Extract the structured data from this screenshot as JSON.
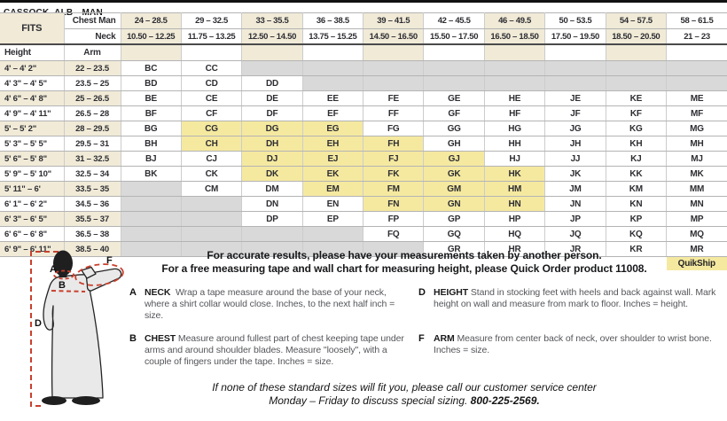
{
  "title": "CASSOCK–ALB—MAN",
  "colors": {
    "cream": "#f0ead7",
    "quickship": "#f5e9a0",
    "na": "#d9d9d9",
    "accent-red": "#c9402e",
    "robe": "#e9e9e9"
  },
  "table": {
    "fits_label": "FITS",
    "chest_label": "Chest Man",
    "neck_label": "Neck",
    "height_label": "Height",
    "arm_label": "Arm",
    "quikship_label": "QuikShip",
    "chest_ranges": [
      "24 – 28.5",
      "29 – 32.5",
      "33 – 35.5",
      "36 – 38.5",
      "39 – 41.5",
      "42 – 45.5",
      "46 – 49.5",
      "50 – 53.5",
      "54 – 57.5",
      "58 – 61.5"
    ],
    "neck_ranges": [
      "10.50 – 12.25",
      "11.75 – 13.25",
      "12.50 – 14.50",
      "13.75 – 15.25",
      "14.50 – 16.50",
      "15.50 – 17.50",
      "16.50 – 18.50",
      "17.50 – 19.50",
      "18.50 – 20.50",
      "21 – 23"
    ],
    "quickship_codes": [
      "CG",
      "DG",
      "EG",
      "CH",
      "DH",
      "EH",
      "FH",
      "DJ",
      "EJ",
      "FJ",
      "GJ",
      "DK",
      "EK",
      "FK",
      "GK",
      "HK",
      "EM",
      "FM",
      "GM",
      "HM",
      "FN",
      "GN",
      "HN"
    ],
    "rows": [
      {
        "height": "4' – 4' 2\"",
        "arm": "22 – 23.5",
        "codes": [
          "BC",
          "CC",
          null,
          null,
          null,
          null,
          null,
          null,
          null,
          null
        ]
      },
      {
        "height": "4' 3\" – 4' 5\"",
        "arm": "23.5 – 25",
        "codes": [
          "BD",
          "CD",
          "DD",
          null,
          null,
          null,
          null,
          null,
          null,
          null
        ]
      },
      {
        "height": "4' 6\" – 4' 8\"",
        "arm": "25 – 26.5",
        "codes": [
          "BE",
          "CE",
          "DE",
          "EE",
          "FE",
          "GE",
          "HE",
          "JE",
          "KE",
          "ME"
        ]
      },
      {
        "height": "4' 9\" – 4' 11\"",
        "arm": "26.5 – 28",
        "codes": [
          "BF",
          "CF",
          "DF",
          "EF",
          "FF",
          "GF",
          "HF",
          "JF",
          "KF",
          "MF"
        ]
      },
      {
        "height": "5' – 5' 2\"",
        "arm": "28 – 29.5",
        "codes": [
          "BG",
          "CG",
          "DG",
          "EG",
          "FG",
          "GG",
          "HG",
          "JG",
          "KG",
          "MG"
        ]
      },
      {
        "height": "5' 3\" – 5' 5\"",
        "arm": "29.5 – 31",
        "codes": [
          "BH",
          "CH",
          "DH",
          "EH",
          "FH",
          "GH",
          "HH",
          "JH",
          "KH",
          "MH"
        ]
      },
      {
        "height": "5' 6\" – 5' 8\"",
        "arm": "31 – 32.5",
        "codes": [
          "BJ",
          "CJ",
          "DJ",
          "EJ",
          "FJ",
          "GJ",
          "HJ",
          "JJ",
          "KJ",
          "MJ"
        ]
      },
      {
        "height": "5' 9\" – 5' 10\"",
        "arm": "32.5 – 34",
        "codes": [
          "BK",
          "CK",
          "DK",
          "EK",
          "FK",
          "GK",
          "HK",
          "JK",
          "KK",
          "MK"
        ]
      },
      {
        "height": "5' 11\" – 6'",
        "arm": "33.5 – 35",
        "codes": [
          null,
          "CM",
          "DM",
          "EM",
          "FM",
          "GM",
          "HM",
          "JM",
          "KM",
          "MM"
        ]
      },
      {
        "height": "6' 1\" – 6' 2\"",
        "arm": "34.5 – 36",
        "codes": [
          null,
          null,
          "DN",
          "EN",
          "FN",
          "GN",
          "HN",
          "JN",
          "KN",
          "MN"
        ]
      },
      {
        "height": "6' 3\" – 6' 5\"",
        "arm": "35.5 – 37",
        "codes": [
          null,
          null,
          "DP",
          "EP",
          "FP",
          "GP",
          "HP",
          "JP",
          "KP",
          "MP"
        ]
      },
      {
        "height": "6' 6\" – 6' 8\"",
        "arm": "36.5 – 38",
        "codes": [
          null,
          null,
          null,
          null,
          "FQ",
          "GQ",
          "HQ",
          "JQ",
          "KQ",
          "MQ"
        ]
      },
      {
        "height": "6' 9\" – 6' 11\"",
        "arm": "38.5 – 40",
        "codes": [
          null,
          null,
          null,
          null,
          null,
          "GR",
          "HR",
          "JR",
          "KR",
          "MR"
        ]
      }
    ]
  },
  "intro": {
    "line1": "For accurate results, please have your measurements taken by another person.",
    "line2": "For a free measuring tape and wall chart for measuring height, please Quick Order product 11008."
  },
  "instructions": [
    {
      "letter": "A",
      "keyword": "NECK",
      "text": "Wrap a tape measure around the base of your neck, where a shirt collar would close. Inches, to the next half inch = size."
    },
    {
      "letter": "B",
      "keyword": "CHEST",
      "text": "Measure around fullest part of chest keeping tape under arms and around shoulder blades. Measure \"loosely\", with a couple of fingers under the tape. Inches = size."
    },
    {
      "letter": "D",
      "keyword": "HEIGHT",
      "text": "Stand in stocking feet with heels and back against wall. Mark height on wall and measure from mark to floor. Inches = height."
    },
    {
      "letter": "F",
      "keyword": "ARM",
      "text": "Measure from center back of neck, over shoulder to wrist bone. Inches = size."
    }
  ],
  "figure": {
    "labels": {
      "a": "A",
      "b": "B",
      "d": "D",
      "f": "F"
    }
  },
  "footer": {
    "line1": "If none of these standard sizes will fit you, please call our customer service center",
    "line2_prefix": "Monday – Friday to discuss special sizing. ",
    "phone": "800-225-2569."
  }
}
